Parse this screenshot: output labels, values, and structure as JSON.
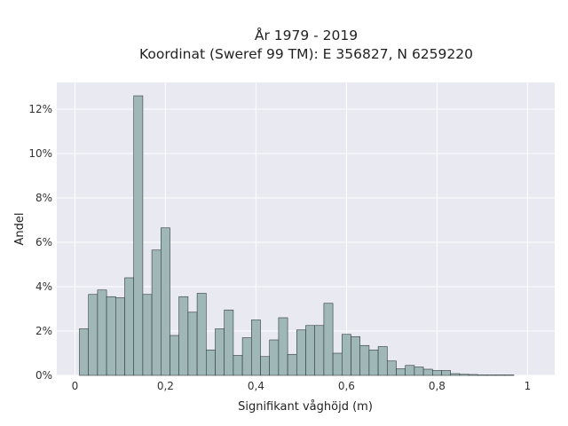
{
  "chart_data": {
    "type": "bar",
    "title_line1": "År 1979 - 2019",
    "title_line2": "Koordinat (Sweref 99 TM): E 356827, N 6259220",
    "xlabel": "Signifikant våghöjd (m)",
    "ylabel": "Andel",
    "xlim": [
      -0.04,
      1.06
    ],
    "ylim": [
      0,
      13.2
    ],
    "x_ticks": [
      0,
      0.2,
      0.4,
      0.6,
      0.8,
      1
    ],
    "x_tick_labels": [
      "0",
      "0,2",
      "0,4",
      "0,6",
      "0,8",
      "1"
    ],
    "y_ticks": [
      0,
      2,
      4,
      6,
      8,
      10,
      12
    ],
    "y_tick_labels": [
      "0%",
      "2%",
      "4%",
      "6%",
      "8%",
      "10%",
      "12%"
    ],
    "bin_width": 0.02,
    "bin_starts": [
      0.01,
      0.03,
      0.05,
      0.07,
      0.09,
      0.11,
      0.13,
      0.15,
      0.17,
      0.19,
      0.21,
      0.23,
      0.25,
      0.27,
      0.29,
      0.31,
      0.33,
      0.35,
      0.37,
      0.39,
      0.41,
      0.43,
      0.45,
      0.47,
      0.49,
      0.51,
      0.53,
      0.55,
      0.57,
      0.59,
      0.61,
      0.63,
      0.65,
      0.67,
      0.69,
      0.71,
      0.73,
      0.75,
      0.77,
      0.79,
      0.81,
      0.83,
      0.85,
      0.87,
      0.89,
      0.91,
      0.93,
      0.95
    ],
    "values": [
      2.1,
      3.65,
      3.85,
      3.55,
      3.5,
      4.4,
      12.6,
      3.65,
      5.65,
      6.65,
      1.8,
      3.55,
      2.85,
      3.7,
      1.15,
      2.1,
      2.95,
      0.9,
      1.7,
      2.5,
      0.85,
      1.6,
      2.6,
      0.95,
      2.05,
      2.25,
      2.25,
      3.25,
      1.0,
      1.85,
      1.75,
      1.35,
      1.15,
      1.3,
      0.65,
      0.3,
      0.45,
      0.38,
      0.28,
      0.22,
      0.22,
      0.08,
      0.05,
      0.04,
      0.02,
      0.02,
      0.02,
      0.02
    ],
    "grid": true,
    "colors": {
      "bar": "#9fb7b6",
      "bar_edge": "#2f3a3a",
      "plot_bg": "#e9e9f1",
      "grid": "#ffffff"
    }
  }
}
